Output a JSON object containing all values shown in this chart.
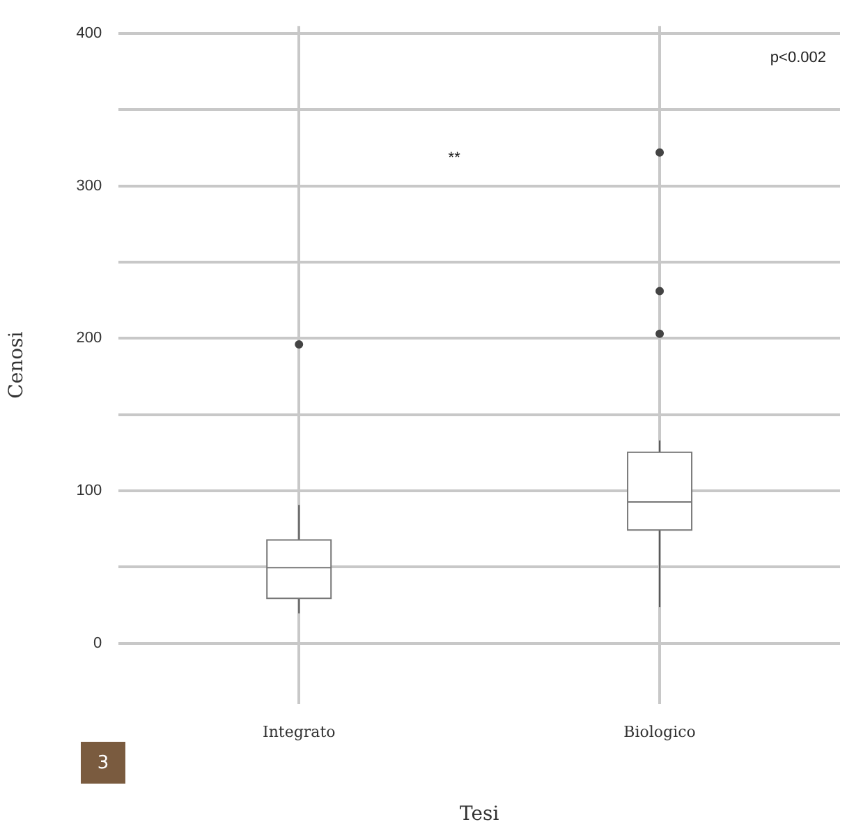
{
  "chart_data": {
    "type": "box",
    "categories": [
      "Integrato",
      "Biologico"
    ],
    "boxes": [
      {
        "low": 19.6,
        "q1": 29.4,
        "median": 49.5,
        "q3": 67.7,
        "high": 90.7,
        "outliers": [
          196
        ]
      },
      {
        "low": 23.6,
        "q1": 74.3,
        "median": 92.7,
        "q3": 125.3,
        "high": 133,
        "outliers": [
          203,
          231,
          322
        ]
      }
    ],
    "color": "#ffffff",
    "xlabel": "Tesi",
    "ylabel": "Cenosi",
    "ylim": [
      -40,
      405
    ],
    "yticks": [
      0,
      {
        "value": 50,
        "label": null
      },
      100,
      {
        "value": 150,
        "label": null
      },
      200,
      {
        "value": 250,
        "label": null
      },
      300,
      {
        "value": 350,
        "label": null
      },
      400
    ],
    "grid": true,
    "legend": false,
    "annotations": [
      "**",
      "p<0.002",
      "3"
    ]
  }
}
